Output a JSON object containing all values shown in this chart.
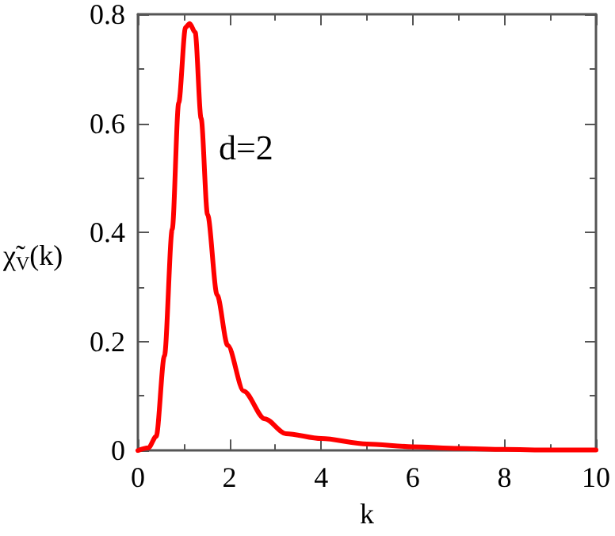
{
  "chart_data": {
    "type": "line",
    "xlabel": "k",
    "ylabel": "χ̃$_{V}$(k)",
    "annotations": [
      "d=2"
    ],
    "x": [
      0,
      0.23,
      0.4,
      0.58,
      0.75,
      0.89,
      1.04,
      1.13,
      1.25,
      1.38,
      1.52,
      1.73,
      1.96,
      2.31,
      2.77,
      3.23,
      4,
      5,
      6,
      7,
      8,
      9,
      10
    ],
    "series": [
      {
        "color": "#ff0000",
        "values": [
          0,
          0.005,
          0.026,
          0.174,
          0.406,
          0.637,
          0.776,
          0.783,
          0.767,
          0.609,
          0.433,
          0.285,
          0.193,
          0.109,
          0.058,
          0.031,
          0.022,
          0.012,
          0.007,
          0.004,
          0.002,
          0.001,
          0.001
        ]
      }
    ],
    "xlim": [
      0,
      10
    ],
    "xticks": [
      0,
      2,
      4,
      6,
      8,
      10
    ],
    "ylim": [
      0,
      0.8
    ],
    "yticks": [
      0,
      0.2,
      0.4,
      0.6,
      0.8
    ],
    "marker": "none",
    "line_style": "solid"
  }
}
